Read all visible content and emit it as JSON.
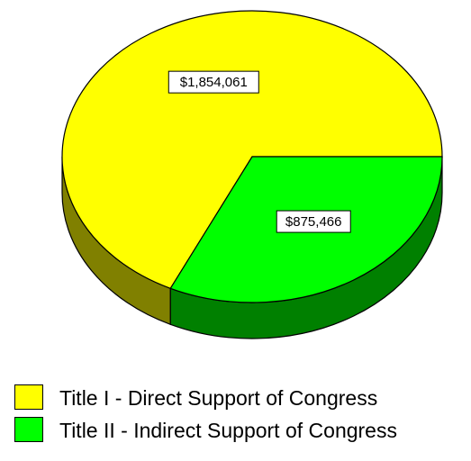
{
  "chart_data": {
    "type": "pie",
    "title": "",
    "slices": [
      {
        "label": "Title I - Direct Support of Congress",
        "value": 1854061,
        "value_label": "$1,854,061",
        "color": "#ffff00",
        "side_color": "#808000"
      },
      {
        "label": "Title II - Indirect Support of Congress",
        "value": 875466,
        "value_label": "$875,466",
        "color": "#00ff00",
        "side_color": "#008000"
      }
    ],
    "legend_position": "bottom-left",
    "style": "3d"
  }
}
